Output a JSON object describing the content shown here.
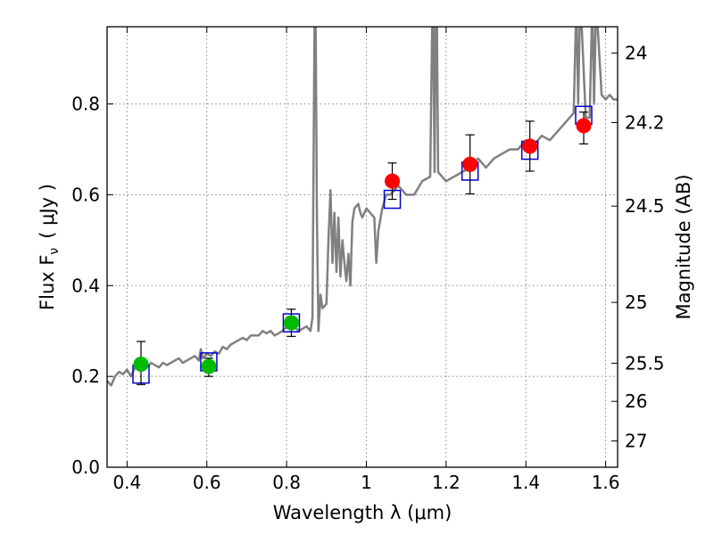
{
  "chart_data": {
    "type": "scatter",
    "xlabel": "Wavelength  λ (μm)",
    "ylabel": "Flux  F",
    "ylabel_sub": "ν",
    "ylabel_unit": "( μJy )",
    "ylabel_right": "Magnitude (AB)",
    "xlim": [
      0.35,
      1.63
    ],
    "ylim": [
      0.0,
      0.97
    ],
    "grid": true,
    "x_ticks": [
      {
        "value": 0.4,
        "label": "0.4"
      },
      {
        "value": 0.6,
        "label": "0.6"
      },
      {
        "value": 0.8,
        "label": "0.8"
      },
      {
        "value": 1.0,
        "label": "1"
      },
      {
        "value": 1.2,
        "label": "1.2"
      },
      {
        "value": 1.4,
        "label": "1.4"
      },
      {
        "value": 1.6,
        "label": "1.6"
      }
    ],
    "y_ticks": [
      {
        "value": 0.0,
        "label": "0.0"
      },
      {
        "value": 0.2,
        "label": "0.2"
      },
      {
        "value": 0.4,
        "label": "0.4"
      },
      {
        "value": 0.6,
        "label": "0.6"
      },
      {
        "value": 0.8,
        "label": "0.8"
      }
    ],
    "right_ticks": [
      {
        "flux": 0.912,
        "label": "24"
      },
      {
        "flux": 0.759,
        "label": "24.2"
      },
      {
        "flux": 0.575,
        "label": "24.5"
      },
      {
        "flux": 0.363,
        "label": "25"
      },
      {
        "flux": 0.229,
        "label": "25.5"
      },
      {
        "flux": 0.145,
        "label": "26"
      },
      {
        "flux": 0.058,
        "label": "27"
      }
    ],
    "colors": {
      "spectrum": "#808080",
      "optical": "#00bb00",
      "nir": "#ff0000",
      "model": "#0000cc",
      "error": "#000000",
      "grid": "#888888"
    },
    "series": [
      {
        "type": "line",
        "color": "#808080",
        "x": [
          0.35,
          0.36,
          0.37,
          0.38,
          0.39,
          0.4,
          0.41,
          0.42,
          0.43,
          0.44,
          0.45,
          0.46,
          0.47,
          0.48,
          0.49,
          0.5,
          0.51,
          0.52,
          0.53,
          0.54,
          0.55,
          0.56,
          0.57,
          0.58,
          0.585,
          0.59,
          0.6,
          0.61,
          0.62,
          0.63,
          0.64,
          0.65,
          0.66,
          0.67,
          0.68,
          0.69,
          0.7,
          0.71,
          0.72,
          0.73,
          0.74,
          0.75,
          0.76,
          0.77,
          0.78,
          0.79,
          0.8,
          0.81,
          0.82,
          0.83,
          0.84,
          0.85,
          0.86,
          0.865,
          0.87,
          0.873,
          0.876,
          0.88,
          0.885,
          0.89,
          0.9,
          0.905,
          0.91,
          0.915,
          0.92,
          0.925,
          0.93,
          0.935,
          0.94,
          0.945,
          0.95,
          0.955,
          0.96,
          0.965,
          0.97,
          0.98,
          0.985,
          0.99,
          1.0,
          1.01,
          1.02,
          1.025,
          1.03,
          1.04,
          1.05,
          1.06,
          1.08,
          1.1,
          1.12,
          1.14,
          1.16,
          1.165,
          1.168,
          1.171,
          1.174,
          1.177,
          1.18,
          1.2,
          1.22,
          1.24,
          1.26,
          1.28,
          1.3,
          1.32,
          1.34,
          1.36,
          1.38,
          1.4,
          1.42,
          1.44,
          1.46,
          1.48,
          1.5,
          1.52,
          1.525,
          1.528,
          1.531,
          1.535,
          1.54,
          1.55,
          1.56,
          1.565,
          1.568,
          1.571,
          1.575,
          1.58,
          1.59,
          1.6,
          1.61,
          1.62,
          1.63
        ],
        "y": [
          0.19,
          0.18,
          0.2,
          0.21,
          0.205,
          0.215,
          0.2,
          0.22,
          0.215,
          0.225,
          0.22,
          0.23,
          0.225,
          0.22,
          0.23,
          0.225,
          0.23,
          0.235,
          0.24,
          0.23,
          0.235,
          0.24,
          0.245,
          0.235,
          0.26,
          0.24,
          0.25,
          0.245,
          0.255,
          0.25,
          0.265,
          0.26,
          0.27,
          0.275,
          0.28,
          0.285,
          0.28,
          0.29,
          0.29,
          0.29,
          0.3,
          0.295,
          0.3,
          0.29,
          0.295,
          0.3,
          0.31,
          0.305,
          0.31,
          0.3,
          0.305,
          0.31,
          0.3,
          0.33,
          0.97,
          0.97,
          0.55,
          0.3,
          0.38,
          0.35,
          0.36,
          0.5,
          0.61,
          0.45,
          0.56,
          0.43,
          0.55,
          0.42,
          0.5,
          0.45,
          0.41,
          0.47,
          0.4,
          0.54,
          0.57,
          0.58,
          0.56,
          0.55,
          0.57,
          0.56,
          0.55,
          0.45,
          0.52,
          0.57,
          0.6,
          0.6,
          0.62,
          0.6,
          0.6,
          0.63,
          0.64,
          0.97,
          0.97,
          0.65,
          0.97,
          0.97,
          0.65,
          0.63,
          0.64,
          0.65,
          0.66,
          0.68,
          0.66,
          0.68,
          0.69,
          0.7,
          0.7,
          0.72,
          0.71,
          0.73,
          0.72,
          0.74,
          0.76,
          0.78,
          0.97,
          0.97,
          0.8,
          0.97,
          0.97,
          0.77,
          0.77,
          0.97,
          0.97,
          0.8,
          0.97,
          0.97,
          0.82,
          0.81,
          0.82,
          0.81,
          0.81
        ]
      },
      {
        "name": "",
        "type": "points",
        "color": "#00bb00",
        "x": [
          0.435,
          0.605,
          0.812
        ],
        "y": [
          0.227,
          0.222,
          0.318
        ],
        "err_low": [
          0.045,
          0.022,
          0.03
        ],
        "err_high": [
          0.05,
          0.018,
          0.03
        ]
      },
      {
        "name": "",
        "type": "points",
        "color": "#ff0000",
        "x": [
          1.065,
          1.26,
          1.41,
          1.545
        ],
        "y": [
          0.63,
          0.667,
          0.707,
          0.752
        ],
        "err_low": [
          0.04,
          0.065,
          0.055,
          0.04
        ],
        "err_high": [
          0.04,
          0.065,
          0.055,
          0.03
        ]
      },
      {
        "name": "",
        "type": "squares",
        "color": "#0000cc",
        "x": [
          0.435,
          0.605,
          0.812,
          1.065,
          1.26,
          1.41,
          1.545
        ],
        "y": [
          0.205,
          0.232,
          0.318,
          0.59,
          0.652,
          0.698,
          0.775
        ]
      }
    ]
  }
}
